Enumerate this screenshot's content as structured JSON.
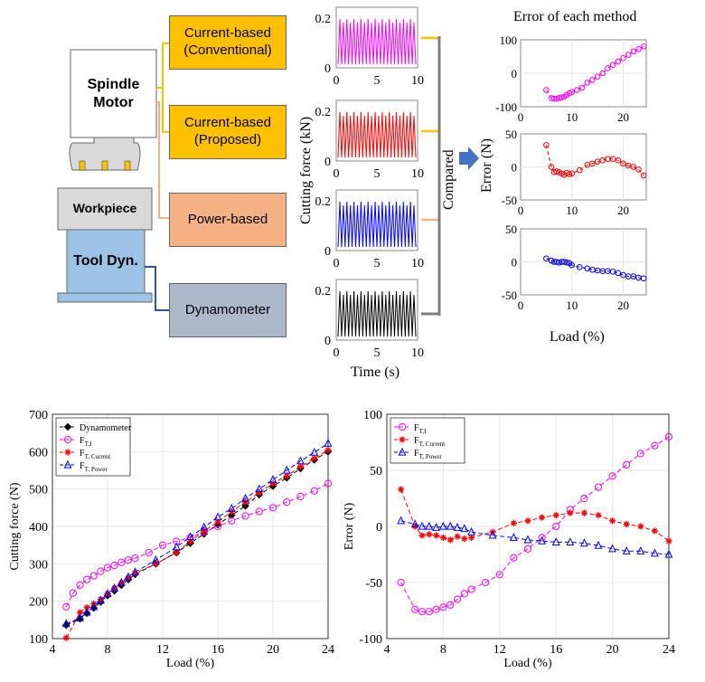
{
  "diagram": {
    "motor_label": "Spindle Motor",
    "workpiece_label": "Workpiece",
    "tool_label": "Tool Dyn.",
    "methods": [
      "Current-based (Conventional)",
      "Current-based (Proposed)",
      "Power-based",
      "Dynamometer"
    ],
    "method_colors": [
      "#ffc000",
      "#ffc000",
      "#f4b183",
      "#adb9ca"
    ],
    "compared_label": "Compared",
    "signal_colors": [
      "#ff00ff",
      "#ff0000",
      "#0000ff",
      "#000000"
    ],
    "signal_ylabel": "Cutting force (kN)",
    "signal_xlabel": "Time (s)",
    "signal_yticks": [
      "0",
      "0.2"
    ],
    "signal_xticks": [
      "0",
      "5",
      "10"
    ],
    "error_title": "Error of each method",
    "error_ylabel": "Error (N)",
    "error_xlabel": "Load (%)",
    "error_xticks": [
      "10",
      "20"
    ],
    "error_yticks": [
      [
        "100",
        "0",
        "-100"
      ],
      [
        "50",
        "0",
        "-50"
      ],
      [
        "50",
        "0",
        "-50"
      ]
    ]
  },
  "chart_data": [
    {
      "type": "line",
      "xlabel": "Load (%)",
      "ylabel": "Cutting force (N)",
      "xlim": [
        4,
        24
      ],
      "ylim": [
        100,
        700
      ],
      "xticks": [
        4,
        8,
        12,
        16,
        20,
        24
      ],
      "yticks": [
        100,
        200,
        300,
        400,
        500,
        600,
        700
      ],
      "grid": true,
      "legend": "top-left",
      "series": [
        {
          "name": "Dynamometer",
          "color": "#000000",
          "marker": "diamond",
          "x": [
            5,
            6,
            6.5,
            7,
            7.5,
            8,
            8.5,
            9,
            9.5,
            10,
            11.5,
            13,
            14,
            15,
            16,
            17,
            18,
            19,
            20,
            21,
            22,
            23,
            24
          ],
          "y": [
            136,
            153,
            168,
            182,
            198,
            215,
            228,
            243,
            258,
            272,
            300,
            330,
            355,
            380,
            405,
            430,
            455,
            485,
            508,
            530,
            555,
            578,
            600
          ]
        },
        {
          "name": "F",
          "sub": "T,I",
          "color": "#ff00ff",
          "marker": "circle",
          "x": [
            5,
            5.5,
            6,
            6.5,
            7,
            7.5,
            8,
            8.5,
            9,
            9.5,
            10,
            11,
            12,
            13,
            14,
            15,
            16,
            17,
            18,
            19,
            20,
            21,
            22,
            23,
            24
          ],
          "y": [
            185,
            222,
            243,
            258,
            268,
            280,
            290,
            296,
            304,
            310,
            315,
            330,
            350,
            360,
            370,
            385,
            400,
            415,
            428,
            440,
            450,
            465,
            480,
            495,
            515
          ]
        },
        {
          "name": "F",
          "sub": "T, Current",
          "color": "#ff0000",
          "marker": "star",
          "x": [
            5,
            6,
            6.5,
            7,
            7.5,
            8,
            8.5,
            9,
            9.5,
            10,
            11.5,
            13,
            14,
            15,
            16,
            17,
            18,
            19,
            20,
            21,
            22,
            23,
            24
          ],
          "y": [
            102,
            170,
            183,
            193,
            205,
            220,
            235,
            248,
            262,
            275,
            300,
            330,
            360,
            388,
            412,
            440,
            465,
            490,
            515,
            535,
            560,
            582,
            604
          ]
        },
        {
          "name": "F",
          "sub": "T, Power",
          "color": "#0000ff",
          "marker": "triangle",
          "x": [
            5,
            6,
            6.5,
            7,
            7.5,
            8,
            8.5,
            9,
            9.5,
            10,
            11.5,
            13,
            14,
            15,
            16,
            17,
            18,
            19,
            20,
            21,
            22,
            23,
            24
          ],
          "y": [
            140,
            155,
            170,
            185,
            202,
            220,
            235,
            250,
            265,
            278,
            310,
            345,
            372,
            398,
            425,
            448,
            475,
            500,
            525,
            550,
            575,
            598,
            622
          ]
        }
      ]
    },
    {
      "type": "line",
      "xlabel": "Load (%)",
      "ylabel": "Error (N)",
      "xlim": [
        4,
        24
      ],
      "ylim": [
        -100,
        100
      ],
      "xticks": [
        4,
        8,
        12,
        16,
        20,
        24
      ],
      "yticks": [
        100,
        50,
        0,
        -50,
        -100
      ],
      "grid": true,
      "legend": "top-left",
      "series": [
        {
          "name": "F",
          "sub": "T,I",
          "color": "#ff00ff",
          "marker": "circle",
          "x": [
            5,
            6,
            6.5,
            7,
            7.5,
            8,
            8.5,
            9,
            9.5,
            10,
            11,
            12,
            13,
            14,
            15,
            16,
            17,
            18,
            19,
            20,
            21,
            22,
            23,
            24
          ],
          "y": [
            -50,
            -74,
            -76,
            -76,
            -74,
            -72,
            -70,
            -65,
            -60,
            -56,
            -50,
            -43,
            -28,
            -20,
            -10,
            0,
            15,
            25,
            35,
            45,
            55,
            65,
            72,
            80
          ]
        },
        {
          "name": "F",
          "sub": "T, Current",
          "color": "#ff0000",
          "marker": "star",
          "x": [
            5,
            6,
            6.5,
            7,
            7.5,
            8,
            8.5,
            9,
            9.5,
            10,
            11.5,
            13,
            14,
            15,
            16,
            17,
            18,
            19,
            20,
            21,
            22,
            23,
            24
          ],
          "y": [
            33,
            0,
            -8,
            -7,
            -8,
            -10,
            -12,
            -9,
            -11,
            -10,
            -5,
            3,
            5,
            8,
            10,
            12,
            12,
            10,
            5,
            2,
            0,
            -4,
            -13
          ]
        },
        {
          "name": "F",
          "sub": "T, Power",
          "color": "#0000ff",
          "marker": "triangle",
          "x": [
            5,
            6,
            6.5,
            7,
            7.5,
            8,
            8.5,
            9,
            9.5,
            10,
            11.5,
            13,
            14,
            15,
            16,
            17,
            18,
            19,
            20,
            21,
            22,
            23,
            24
          ],
          "y": [
            5,
            2,
            0,
            0,
            -1,
            0,
            0,
            -1,
            -2,
            -5,
            -8,
            -10,
            -12,
            -13,
            -14,
            -14,
            -15,
            -17,
            -20,
            -22,
            -22,
            -24,
            -25
          ]
        }
      ]
    }
  ]
}
